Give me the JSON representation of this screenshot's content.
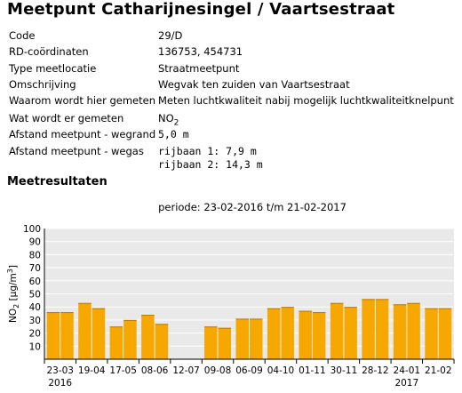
{
  "title": "Meetpunt Catharijnesingel / Vaartsestraat",
  "info": [
    {
      "label": "Code",
      "value": "29/D"
    },
    {
      "label": "RD-coördinaten",
      "value": "136753, 454731"
    },
    {
      "label": "Type meetlocatie",
      "value": "Straatmeetpunt"
    },
    {
      "label": "Omschrijving",
      "value": "Wegvak ten zuiden van Vaartsestraat"
    },
    {
      "label": "Waarom wordt hier gemeten",
      "value": "Meten luchtkwaliteit nabij mogelijk luchtkwaliteitknelpunt"
    },
    {
      "label": "Wat wordt er gemeten",
      "value": "NO",
      "value_sub": "2"
    },
    {
      "label": "Afstand meetpunt - wegrand",
      "value": "5,0 m"
    },
    {
      "label": "Afstand meetpunt - wegas",
      "value": "rijbaan 1: 7,9 m",
      "value2": "rijbaan 2: 14,3 m"
    }
  ],
  "results_heading": "Meetresultaten",
  "period": "periode: 23-02-2016 t/m 21-02-2017",
  "chart_data": {
    "type": "bar",
    "categories": [
      "23-03",
      "19-04",
      "17-05",
      "08-06",
      "12-07",
      "09-08",
      "06-09",
      "04-10",
      "01-11",
      "30-11",
      "28-12",
      "24-01",
      "21-02"
    ],
    "year_labels": [
      {
        "index": 0,
        "label": "2016"
      },
      {
        "index": 11,
        "label": "2017"
      }
    ],
    "values": [
      [
        36,
        36
      ],
      [
        43,
        39
      ],
      [
        25,
        30
      ],
      [
        34,
        27
      ],
      [
        null,
        null
      ],
      [
        25,
        24
      ],
      [
        31,
        31
      ],
      [
        39,
        40
      ],
      [
        37,
        36
      ],
      [
        43,
        40
      ],
      [
        46,
        46
      ],
      [
        42,
        43
      ],
      [
        39,
        39
      ]
    ],
    "ylabel": "NO",
    "ylabel_sub": "2",
    "ylabel_unit": "[µg/m",
    "ylabel_unit_sup": "3",
    "ylabel_unit_close": "]",
    "ylim": [
      0,
      100
    ],
    "yticks": [
      10,
      20,
      30,
      40,
      50,
      60,
      70,
      80,
      90,
      100
    ],
    "grid": true,
    "colors": {
      "bar": "#f7a800",
      "bar_edge": "#b87a00",
      "grid": "#ffffff",
      "plot_bg": "#e9e9e9",
      "axis": "#000000"
    }
  }
}
